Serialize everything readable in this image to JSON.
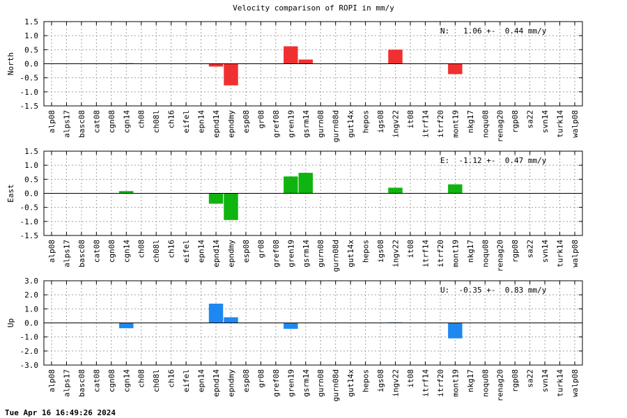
{
  "title": "Velocity comparison of ROPI in mm/y",
  "timestamp": "Tue Apr 16 16:49:26 2024",
  "chart_data": [
    {
      "type": "bar",
      "ylabel": "North",
      "annotation": "N:   1.06 +-  0.44 mm/y",
      "color": "#f03030",
      "ylim": [
        -1.5,
        1.5
      ],
      "yticks": [
        "-1.5",
        "-1.0",
        "-0.5",
        "0.0",
        "0.5",
        "1.0",
        "1.5"
      ],
      "grid": true,
      "categories": [
        "alp08",
        "alps17",
        "basc08",
        "cat08",
        "cgn08",
        "cgn14",
        "ch08",
        "ch08l",
        "ch16",
        "eifel",
        "epn14",
        "epnd14",
        "epndmy",
        "esp08",
        "gr08",
        "gref08",
        "gren19",
        "gsrm14",
        "gurn08",
        "gurn08d",
        "gut14x",
        "hepos",
        "igs08",
        "ingv22",
        "it08",
        "itrf14",
        "itrf20",
        "mont19",
        "nkg17",
        "noqu08",
        "renag20",
        "rgp08",
        "sa22",
        "svn14",
        "turk14",
        "walp08"
      ],
      "values": [
        null,
        null,
        null,
        null,
        null,
        0.02,
        null,
        null,
        null,
        null,
        null,
        -0.1,
        -0.77,
        null,
        null,
        null,
        0.62,
        0.15,
        null,
        null,
        null,
        null,
        null,
        0.5,
        null,
        null,
        null,
        -0.37,
        null,
        null,
        null,
        null,
        null,
        null,
        null,
        null
      ]
    },
    {
      "type": "bar",
      "ylabel": "East",
      "annotation": "E:  -1.12 +-  0.47 mm/y",
      "color": "#10b410",
      "ylim": [
        -1.5,
        1.5
      ],
      "yticks": [
        "-1.5",
        "-1.0",
        "-0.5",
        "0.0",
        "0.5",
        "1.0",
        "1.5"
      ],
      "grid": true,
      "categories": [
        "alp08",
        "alps17",
        "basc08",
        "cat08",
        "cgn08",
        "cgn14",
        "ch08",
        "ch08l",
        "ch16",
        "eifel",
        "epn14",
        "epnd14",
        "epndmy",
        "esp08",
        "gr08",
        "gref08",
        "gren19",
        "gsrm14",
        "gurn08",
        "gurn08d",
        "gut14x",
        "hepos",
        "igs08",
        "ingv22",
        "it08",
        "itrf14",
        "itrf20",
        "mont19",
        "nkg17",
        "noqu08",
        "renag20",
        "rgp08",
        "sa22",
        "svn14",
        "turk14",
        "walp08"
      ],
      "values": [
        null,
        null,
        null,
        null,
        null,
        0.08,
        null,
        null,
        null,
        null,
        null,
        -0.37,
        -0.95,
        null,
        null,
        null,
        0.6,
        0.73,
        null,
        null,
        null,
        null,
        null,
        0.2,
        null,
        null,
        null,
        0.32,
        null,
        null,
        null,
        null,
        null,
        null,
        null,
        null
      ]
    },
    {
      "type": "bar",
      "ylabel": "Up",
      "annotation": "U:  -0.35 +-  0.83 mm/y",
      "color": "#1e88f0",
      "ylim": [
        -3.0,
        3.0
      ],
      "yticks": [
        "-3.0",
        "-2.0",
        "-1.0",
        "0.0",
        "1.0",
        "2.0",
        "3.0"
      ],
      "grid": true,
      "categories": [
        "alp08",
        "alps17",
        "basc08",
        "cat08",
        "cgn08",
        "cgn14",
        "ch08",
        "ch08l",
        "ch16",
        "eifel",
        "epn14",
        "epnd14",
        "epndmy",
        "esp08",
        "gr08",
        "gref08",
        "gren19",
        "gsrm14",
        "gurn08",
        "gurn08d",
        "gut14x",
        "hepos",
        "igs08",
        "ingv22",
        "it08",
        "itrf14",
        "itrf20",
        "mont19",
        "nkg17",
        "noqu08",
        "renag20",
        "rgp08",
        "sa22",
        "svn14",
        "turk14",
        "walp08"
      ],
      "values": [
        null,
        null,
        null,
        null,
        null,
        -0.38,
        null,
        null,
        null,
        null,
        null,
        1.37,
        0.4,
        null,
        null,
        null,
        -0.42,
        null,
        null,
        null,
        null,
        null,
        null,
        0.04,
        null,
        null,
        null,
        -1.1,
        null,
        null,
        null,
        null,
        null,
        null,
        null,
        null
      ]
    }
  ]
}
